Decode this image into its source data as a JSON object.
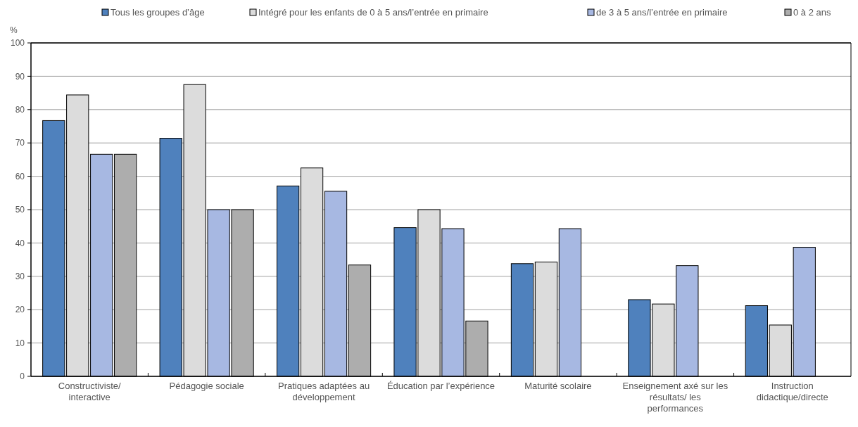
{
  "chart_data": {
    "type": "bar",
    "ylabel": "%",
    "categories": [
      "Constructiviste/ interactive",
      "Pédagogie sociale",
      "Pratiques adaptées au développement",
      "Éducation par l’expérience",
      "Maturité scolaire",
      "Enseignement axé sur les résultats/ les performances",
      "Instruction didactique/directe"
    ],
    "series": [
      {
        "name": "Tous les groupes d’âge",
        "color": "#4f81bd",
        "values": [
          76.7,
          71.4,
          57.1,
          44.6,
          33.8,
          23.0,
          21.2
        ]
      },
      {
        "name": "Intégré pour les enfants de 0 à 5 ans/l’entrée en primaire",
        "color": "#dcdcdc",
        "values": [
          84.4,
          87.5,
          62.5,
          50,
          34.3,
          21.7,
          15.4
        ]
      },
      {
        "name": "de 3 à 5 ans/l’entrée en primaire",
        "color": "#a7b8e2",
        "values": [
          66.6,
          50,
          55.5,
          44.3,
          44.3,
          33.2,
          38.7
        ]
      },
      {
        "name": "0 à 2 ans",
        "color": "#adadad",
        "values": [
          66.6,
          50,
          33.4,
          16.6,
          null,
          null,
          null
        ]
      }
    ],
    "ylim": [
      0,
      100
    ],
    "yticks": [
      0,
      10,
      20,
      30,
      40,
      50,
      60,
      70,
      80,
      90,
      100
    ],
    "grid": "y",
    "legend": "top"
  }
}
